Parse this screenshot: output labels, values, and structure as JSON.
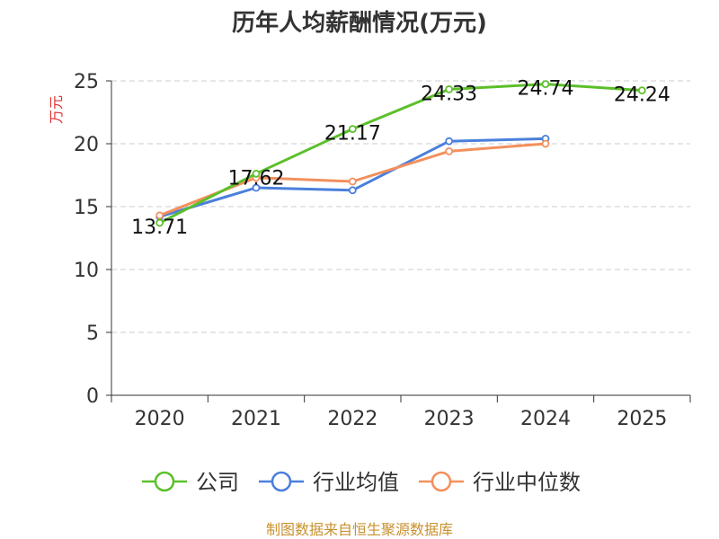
{
  "chart_data": {
    "type": "line",
    "title": "历年人均薪酬情况(万元)",
    "ylabel": "万元",
    "xlabel": "",
    "categories": [
      "2020",
      "2021",
      "2022",
      "2023",
      "2024",
      "2025"
    ],
    "ylim": [
      0,
      25
    ],
    "yticks": [
      0,
      5,
      10,
      15,
      20,
      25
    ],
    "grid": "horizontal dashed",
    "legend_position": "bottom",
    "series": [
      {
        "name": "公司",
        "color": "#5cbf2a",
        "values": [
          13.71,
          17.62,
          21.17,
          24.33,
          24.74,
          24.24
        ],
        "labels": [
          "13.71",
          "17.62",
          "21.17",
          "24.33",
          "24.74",
          "24.24"
        ]
      },
      {
        "name": "行业均值",
        "color": "#4a7fdc",
        "values": [
          14.2,
          16.5,
          16.3,
          20.2,
          20.4,
          null
        ],
        "labels": []
      },
      {
        "name": "行业中位数",
        "color": "#f3905d",
        "values": [
          14.3,
          17.3,
          17.0,
          19.4,
          20.0,
          null
        ],
        "labels": []
      }
    ],
    "source": "制图数据来自恒生聚源数据库"
  }
}
